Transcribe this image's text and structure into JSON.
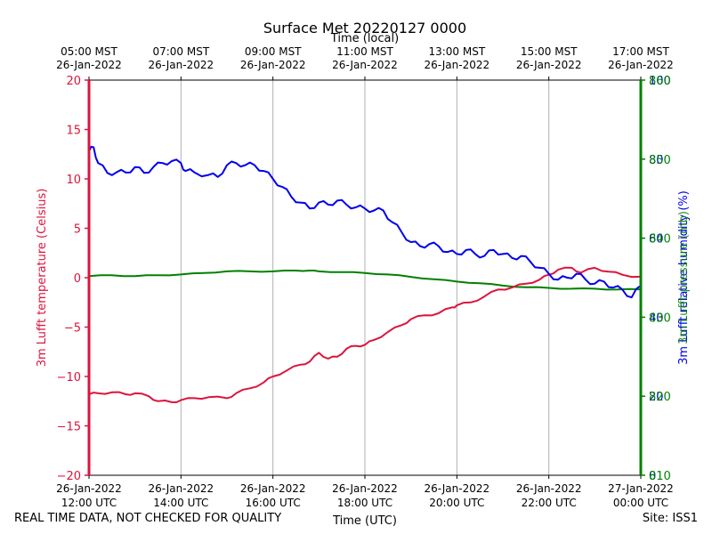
{
  "chart_data": {
    "type": "line",
    "title": "Surface Met 20220127 0000",
    "top_axis_label": "Time (local)",
    "xlabel": "Time (UTC)",
    "ylabel_left": "3m Lufft temperature (Celsius)",
    "ylabel_right_a": "3m Lufft relative humidity (%)",
    "ylabel_right_b": "3m Lufft pressure (mb)",
    "left_ylim": [
      -20,
      20
    ],
    "left_ticks": [
      "20",
      "15",
      "10",
      "5",
      "0",
      "−5",
      "−10",
      "−15",
      "−20"
    ],
    "right_ticks_a": [
      "100",
      "80",
      "60",
      "40",
      "20",
      "0"
    ],
    "right_ticks_b": [
      "860",
      "850",
      "840",
      "830",
      "820",
      "810"
    ],
    "x_range_hours": [
      12,
      24
    ],
    "x_ticks_bottom": [
      {
        "l1": "26-Jan-2022",
        "l2": "12:00 UTC"
      },
      {
        "l1": "26-Jan-2022",
        "l2": "14:00 UTC"
      },
      {
        "l1": "26-Jan-2022",
        "l2": "16:00 UTC"
      },
      {
        "l1": "26-Jan-2022",
        "l2": "18:00 UTC"
      },
      {
        "l1": "26-Jan-2022",
        "l2": "20:00 UTC"
      },
      {
        "l1": "26-Jan-2022",
        "l2": "22:00 UTC"
      },
      {
        "l1": "27-Jan-2022",
        "l2": "00:00 UTC"
      }
    ],
    "x_ticks_top": [
      {
        "l1": "05:00 MST",
        "l2": "26-Jan-2022"
      },
      {
        "l1": "07:00 MST",
        "l2": "26-Jan-2022"
      },
      {
        "l1": "09:00 MST",
        "l2": "26-Jan-2022"
      },
      {
        "l1": "11:00 MST",
        "l2": "26-Jan-2022"
      },
      {
        "l1": "13:00 MST",
        "l2": "26-Jan-2022"
      },
      {
        "l1": "15:00 MST",
        "l2": "26-Jan-2022"
      },
      {
        "l1": "17:00 MST",
        "l2": "26-Jan-2022"
      }
    ],
    "series": [
      {
        "name": "3m Lufft temperature",
        "color": "#dc143c",
        "axis": "Celsius",
        "x": [
          12.0,
          12.2,
          12.5,
          12.8,
          13.0,
          13.3,
          13.5,
          13.8,
          14.0,
          14.3,
          14.6,
          15.0,
          15.2,
          15.5,
          15.8,
          16.0,
          16.3,
          16.6,
          16.8,
          17.0,
          17.2,
          17.4,
          17.6,
          17.8,
          18.0,
          18.2,
          18.5,
          18.8,
          19.0,
          19.3,
          19.6,
          19.9,
          20.0,
          20.3,
          20.6,
          20.9,
          21.2,
          21.5,
          21.8,
          22.0,
          22.2,
          22.5,
          22.7,
          23.0,
          23.3,
          23.6,
          24.0
        ],
        "values": [
          -11.8,
          -11.7,
          -11.6,
          -11.8,
          -11.7,
          -12.0,
          -12.5,
          -12.6,
          -12.4,
          -12.2,
          -12.1,
          -12.2,
          -11.7,
          -11.2,
          -10.6,
          -10.0,
          -9.4,
          -8.8,
          -8.5,
          -7.6,
          -8.2,
          -8.0,
          -7.2,
          -6.9,
          -6.8,
          -6.3,
          -5.5,
          -4.8,
          -4.2,
          -3.8,
          -3.6,
          -3.0,
          -2.8,
          -2.5,
          -1.9,
          -1.2,
          -1.0,
          -0.6,
          -0.2,
          0.3,
          0.8,
          1.0,
          0.5,
          1.0,
          0.6,
          0.3,
          0.1
        ]
      },
      {
        "name": "3m Lufft relative humidity",
        "color": "#0000ee",
        "axis": "%",
        "x": [
          12.0,
          12.1,
          12.2,
          12.4,
          12.6,
          12.8,
          13.0,
          13.2,
          13.4,
          13.6,
          13.8,
          14.0,
          14.1,
          14.3,
          14.6,
          14.8,
          15.0,
          15.2,
          15.4,
          15.6,
          15.8,
          16.0,
          16.2,
          16.4,
          16.6,
          16.8,
          17.0,
          17.2,
          17.4,
          17.6,
          17.8,
          18.0,
          18.2,
          18.4,
          18.6,
          18.8,
          19.0,
          19.2,
          19.4,
          19.6,
          19.8,
          20.0,
          20.2,
          20.4,
          20.6,
          20.8,
          21.0,
          21.2,
          21.4,
          21.6,
          21.8,
          22.0,
          22.2,
          22.4,
          22.6,
          22.8,
          23.0,
          23.2,
          23.4,
          23.6,
          23.8,
          24.0
        ],
        "values": [
          82,
          83,
          79,
          76.5,
          76.7,
          76.6,
          78,
          76.5,
          78,
          79,
          79.5,
          79,
          77,
          76.6,
          76,
          75.5,
          78.5,
          79,
          78.5,
          78.5,
          77,
          75,
          73,
          70.5,
          69,
          67.5,
          69,
          68.5,
          69.5,
          68.5,
          67.8,
          67.5,
          67,
          67,
          64,
          61.5,
          59,
          58,
          58.5,
          58,
          56.5,
          56,
          57,
          56,
          55.5,
          57,
          56,
          55,
          55.5,
          54,
          52.5,
          51,
          49.5,
          50,
          51,
          49.5,
          48.5,
          49,
          47.5,
          47,
          45,
          48
        ]
      },
      {
        "name": "3m Lufft pressure",
        "color": "#008000",
        "axis": "mb",
        "x": [
          12.0,
          12.5,
          13.0,
          13.5,
          14.0,
          14.5,
          15.0,
          15.5,
          16.0,
          16.5,
          16.8,
          17.0,
          17.5,
          18.0,
          18.5,
          19.0,
          19.5,
          20.0,
          20.5,
          21.0,
          21.5,
          22.0,
          22.5,
          23.0,
          23.5,
          24.0
        ],
        "values": [
          835.2,
          835.3,
          835.2,
          835.3,
          835.4,
          835.6,
          835.8,
          835.8,
          835.8,
          835.9,
          835.9,
          835.8,
          835.7,
          835.6,
          835.4,
          835.1,
          834.8,
          834.5,
          834.3,
          834.0,
          833.8,
          833.7,
          833.6,
          833.6,
          833.5,
          833.5
        ]
      }
    ]
  },
  "footer": {
    "left": "REAL TIME DATA, NOT CHECKED FOR QUALITY",
    "right": "Site: ISS1"
  }
}
